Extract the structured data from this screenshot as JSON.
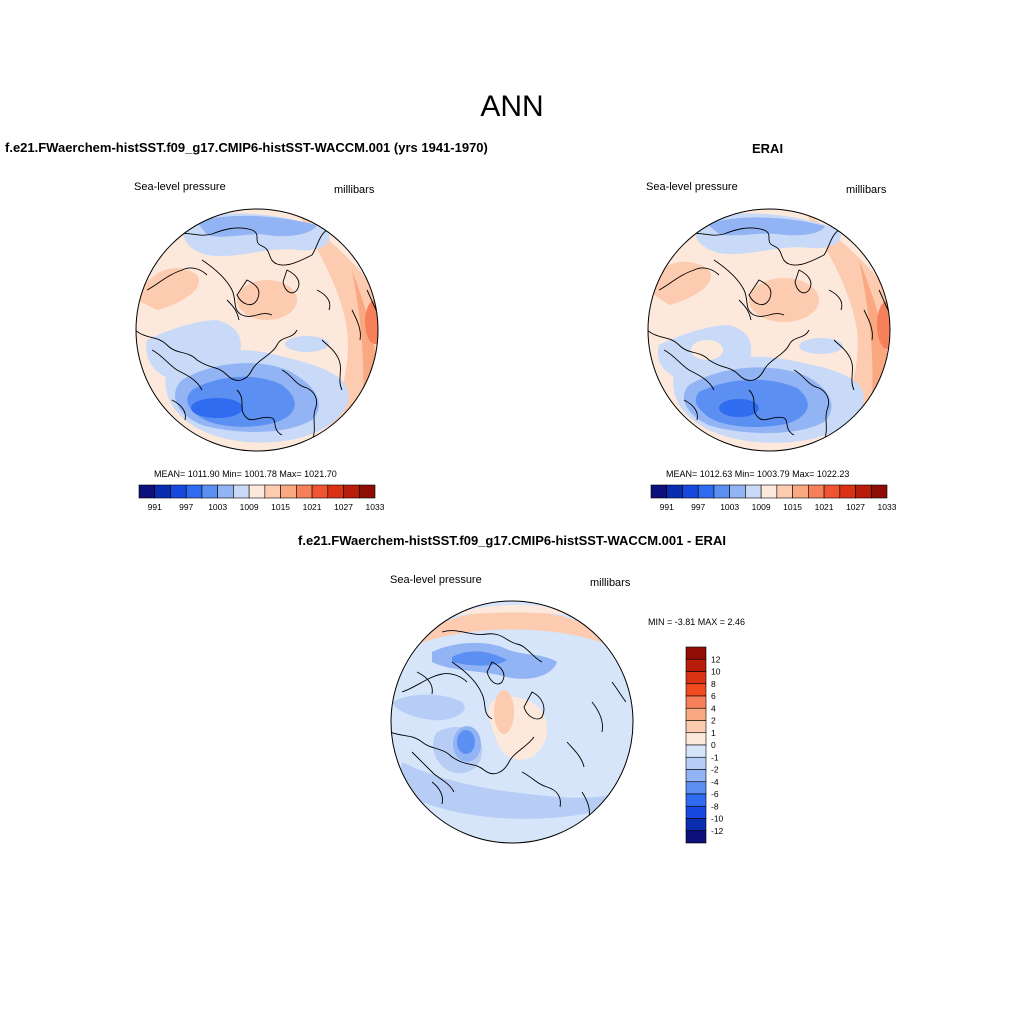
{
  "figure": {
    "title": "ANN"
  },
  "panels": {
    "model": {
      "title": "f.e21.FWaerchem-histSST.f09_g17.CMIP6-histSST-WACCM.001 (yrs 1941-1970)",
      "variable": "Sea-level pressure",
      "units": "millibars",
      "stats": "MEAN= 1011.90  Min= 1001.78  Max= 1021.70"
    },
    "obs": {
      "title": "ERAI",
      "variable": "Sea-level pressure",
      "units": "millibars",
      "stats": "MEAN= 1012.63  Min= 1003.79  Max= 1022.23"
    },
    "diff": {
      "title": "f.e21.FWaerchem-histSST.f09_g17.CMIP6-histSST-WACCM.001 - ERAI",
      "variable": "Sea-level pressure",
      "units": "millibars",
      "stats": "MIN =  -3.81 MAX =   2.46"
    }
  },
  "colorbars": {
    "slp": {
      "colors": [
        "#0d0f7a",
        "#0a2db0",
        "#1749e0",
        "#2f6cf0",
        "#5b8ff2",
        "#93b4f4",
        "#c8daf8",
        "#fde9dc",
        "#fccbb0",
        "#f9a882",
        "#f6805a",
        "#ef5433",
        "#d93214",
        "#b71d0a",
        "#8f0d05"
      ],
      "labels": [
        "991",
        "997",
        "1003",
        "1009",
        "1015",
        "1021",
        "1027",
        "1033"
      ]
    },
    "diff": {
      "colors_top_to_bottom": [
        "#8f0d05",
        "#b71d0a",
        "#d93214",
        "#f04b1e",
        "#f6805a",
        "#f9a882",
        "#fccbb0",
        "#fde9dc",
        "#d6e5fa",
        "#b8cdf6",
        "#93b4f4",
        "#5b8ff2",
        "#2f6cf0",
        "#1749e0",
        "#0a2db0",
        "#0d0f7a"
      ],
      "labels": [
        "12",
        "10",
        "8",
        "6",
        "4",
        "2",
        "1",
        "0",
        "-1",
        "-2",
        "-4",
        "-6",
        "-8",
        "-10",
        "-12"
      ]
    }
  },
  "map_colors": {
    "slp_low_strong": "#2f6cf0",
    "slp_low": "#5b8ff2",
    "slp_low_mid": "#93b4f4",
    "slp_low_weak": "#c8daf8",
    "slp_mid": "#fde9dc",
    "slp_high_weak": "#fccbb0",
    "slp_high": "#f9a882",
    "slp_high_strong": "#f6805a",
    "diff_base": "#d6e5fa",
    "diff_neg": "#b8cdf6",
    "diff_neg_strong": "#93b4f4",
    "diff_neg_max": "#5b8ff2",
    "diff_pos": "#fccbb0",
    "diff_pos_weak": "#fde9dc"
  }
}
